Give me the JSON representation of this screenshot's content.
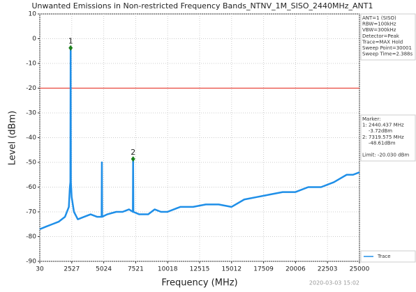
{
  "chart_data": {
    "type": "line",
    "title": "Unwanted Emissions in Non-restricted Frequency Bands_NTNV_1M_SISO_2440MHz_ANT1",
    "x_label": "Frequency (MHz)",
    "y_label": "Level (dBm)",
    "xlim": [
      30,
      25000
    ],
    "ylim": [
      -90,
      10
    ],
    "xticks": [
      30,
      2527,
      5024,
      7521,
      10018,
      12515,
      15012,
      17509,
      20006,
      22503,
      25000
    ],
    "yticks": [
      10,
      0,
      -10,
      -20,
      -30,
      -40,
      -50,
      -60,
      -70,
      -80,
      -90
    ],
    "grid": true,
    "x": [
      30,
      500,
      1000,
      1500,
      2000,
      2300,
      2380,
      2420,
      2440.437,
      2460,
      2520,
      2700,
      3000,
      3500,
      4000,
      4500,
      4860,
      4880,
      4900,
      5300,
      6000,
      6500,
      7000,
      7300,
      7319.575,
      7340,
      7800,
      8500,
      9000,
      9500,
      10000,
      11000,
      12000,
      13000,
      14000,
      15000,
      16000,
      17000,
      18000,
      19000,
      20000,
      21000,
      22000,
      23000,
      24000,
      24500,
      25000
    ],
    "series": [
      {
        "name": "Trace",
        "color": "#1f8fe8",
        "values": [
          -77,
          -76,
          -75,
          -74,
          -72,
          -68,
          -60,
          -58,
          -3.72,
          -58,
          -64,
          -70,
          -73,
          -72,
          -71,
          -72,
          -72,
          -50,
          -72,
          -71,
          -70,
          -70,
          -69,
          -70,
          -48.61,
          -70,
          -71,
          -71,
          -69,
          -70,
          -70,
          -68,
          -68,
          -67,
          -67,
          -68,
          -65,
          -64,
          -63,
          -62,
          -62,
          -60,
          -60,
          -58,
          -55,
          -55,
          -54
        ]
      }
    ],
    "limit": -20,
    "limit_color": "#e8453c",
    "markers": [
      {
        "label": "1",
        "x": 2440.437,
        "y": -3.72
      },
      {
        "label": "2",
        "x": 7319.575,
        "y": -48.61
      }
    ],
    "marker_color": "#1a7f1a",
    "info": [
      "ANT=1 (SISO)",
      "RBW=100kHz",
      "VBW=300kHz",
      "Detector=Peak",
      "Trace=MAX Hold",
      "Sweep Point=30001",
      "Sweep Time=2.388s"
    ],
    "marker_info": [
      "Marker:",
      "1: 2440.437 MHz",
      "    -3.72dBm",
      "2: 7319.575 MHz",
      "    -48.61dBm",
      "",
      "Limit: -20.030 dBm"
    ],
    "timestamp": "2020-03-03 15:02"
  }
}
